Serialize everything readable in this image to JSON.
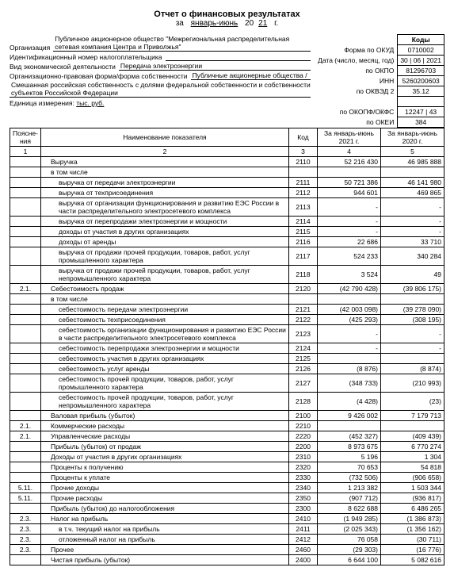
{
  "header": {
    "title": "Отчет о финансовых результатах",
    "period_prefix": "за",
    "period_month": "январь-июнь",
    "period_year_prefix": "20",
    "period_year_suffix": "21",
    "period_suffix": "г.",
    "org_label": "Организация",
    "org_value": "Публичное акционерное общество \"Межрегиональная распределительная сетевая компания Центра и Приволжья\"",
    "inn_label": "Идентификационный номер налогоплательщика",
    "activity_label": "Вид экономической деятельности",
    "activity_value": "Передача электроэнергии",
    "legal_label": "Организационно-правовая форма/форма собственности",
    "legal_value": "Публичные акционерные общества /",
    "ownership_note": "Смешанная российская собственность с долями федеральной собственности и собственности субъектов Российской Федерации",
    "unit_label": "Единица измерения:",
    "unit_value": "тыс. руб."
  },
  "codes": {
    "hdr": "Коды",
    "okud_lbl": "Форма по ОКУД",
    "okud": "0710002",
    "date_lbl": "Дата (число, месяц, год)",
    "date": "30 | 06 | 2021",
    "okpo_lbl": "по ОКПО",
    "okpo": "81296703",
    "inn_lbl": "ИНН",
    "inn": "5260200603",
    "okved_lbl": "по ОКВЭД 2",
    "okved": "35.12",
    "okopf_lbl": "по ОКОПФ/ОКФС",
    "okopf": "12247 | 43",
    "okei_lbl": "по ОКЕИ",
    "okei": "384"
  },
  "table": {
    "head": {
      "c1": "Поясне-\nния",
      "c2": "Наименование показателя",
      "c3": "Код",
      "c4": "За январь-июнь 2021 г.",
      "c5": "За январь-июнь 2020 г.",
      "n1": "1",
      "n2": "2",
      "n3": "3",
      "n4": "4",
      "n5": "5"
    },
    "rows": [
      {
        "p": "",
        "n": "Выручка",
        "i": 1,
        "c": "2110",
        "v1": "52 216 430",
        "v2": "46 985 888"
      },
      {
        "p": "",
        "n": "в том числе",
        "i": 1,
        "c": "",
        "v1": "",
        "v2": ""
      },
      {
        "p": "",
        "n": "выручка от передачи электроэнергии",
        "i": 2,
        "c": "2111",
        "v1": "50 721 386",
        "v2": "46 141 980"
      },
      {
        "p": "",
        "n": "выручка от техприсоединения",
        "i": 2,
        "c": "2112",
        "v1": "944 601",
        "v2": "469 865"
      },
      {
        "p": "",
        "n": "выручка от организации функционирования и развитию ЕЭС России в части распределительного электросетевого комплекса",
        "i": 2,
        "c": "2113",
        "v1": "-",
        "v2": "-"
      },
      {
        "p": "",
        "n": "выручка от перепродажи электроэнергии и мощности",
        "i": 2,
        "c": "2114",
        "v1": "-",
        "v2": "-"
      },
      {
        "p": "",
        "n": "доходы от участия в других организациях",
        "i": 2,
        "c": "2115",
        "v1": "-",
        "v2": "-"
      },
      {
        "p": "",
        "n": "доходы от аренды",
        "i": 2,
        "c": "2116",
        "v1": "22 686",
        "v2": "33 710"
      },
      {
        "p": "",
        "n": "выручка от продажи прочей продукции, товаров, работ, услуг промышленного характера",
        "i": 2,
        "c": "2117",
        "v1": "524 233",
        "v2": "340 284"
      },
      {
        "p": "",
        "n": "выручка от продажи прочей продукции, товаров, работ, услуг непромышленного характера",
        "i": 2,
        "c": "2118",
        "v1": "3 524",
        "v2": "49"
      },
      {
        "p": "2.1.",
        "n": "Себестоимость продаж",
        "i": 1,
        "c": "2120",
        "v1": "(42 790 428)",
        "v2": "(39 806 175)"
      },
      {
        "p": "",
        "n": "в том числе",
        "i": 1,
        "c": "",
        "v1": "",
        "v2": ""
      },
      {
        "p": "",
        "n": "себестоимость передачи электроэнергии",
        "i": 2,
        "c": "2121",
        "v1": "(42 003 098)",
        "v2": "(39 278 090)"
      },
      {
        "p": "",
        "n": "себестоимость техприсоединения",
        "i": 2,
        "c": "2122",
        "v1": "(425 293)",
        "v2": "(308 195)"
      },
      {
        "p": "",
        "n": "себестоимость организации функционирования и развитию ЕЭС России в части распределительного электросетевого комплекса",
        "i": 2,
        "c": "2123",
        "v1": "-",
        "v2": "-"
      },
      {
        "p": "",
        "n": "себестоимость перепродажи электроэнергии и мощности",
        "i": 2,
        "c": "2124",
        "v1": "-",
        "v2": "-"
      },
      {
        "p": "",
        "n": "себестоимость участия в других организациях",
        "i": 2,
        "c": "2125",
        "v1": "",
        "v2": ""
      },
      {
        "p": "",
        "n": "себестоимость услуг аренды",
        "i": 2,
        "c": "2126",
        "v1": "(8 876)",
        "v2": "(8 874)"
      },
      {
        "p": "",
        "n": "себестоимость прочей продукции, товаров, работ, услуг промышленного характера",
        "i": 2,
        "c": "2127",
        "v1": "(348 733)",
        "v2": "(210 993)"
      },
      {
        "p": "",
        "n": "себестоимость прочей продукции, товаров, работ, услуг непромышленного характера",
        "i": 2,
        "c": "2128",
        "v1": "(4 428)",
        "v2": "(23)"
      },
      {
        "p": "",
        "n": "Валовая прибыль (убыток)",
        "i": 1,
        "c": "2100",
        "v1": "9 426 002",
        "v2": "7 179 713"
      },
      {
        "p": "2.1.",
        "n": "Коммерческие расходы",
        "i": 1,
        "c": "2210",
        "v1": "",
        "v2": ""
      },
      {
        "p": "2.1.",
        "n": "Управленческие расходы",
        "i": 1,
        "c": "2220",
        "v1": "(452 327)",
        "v2": "(409 439)"
      },
      {
        "p": "",
        "n": "Прибыль (убыток) от продаж",
        "i": 1,
        "c": "2200",
        "v1": "8 973 675",
        "v2": "6 770 274"
      },
      {
        "p": "",
        "n": "Доходы от участия в других организациях",
        "i": 1,
        "c": "2310",
        "v1": "5 196",
        "v2": "1 304"
      },
      {
        "p": "",
        "n": "Проценты к получению",
        "i": 1,
        "c": "2320",
        "v1": "70 653",
        "v2": "54 818"
      },
      {
        "p": "",
        "n": "Проценты к уплате",
        "i": 1,
        "c": "2330",
        "v1": "(732 506)",
        "v2": "(906 658)"
      },
      {
        "p": "5.11.",
        "n": "Прочие доходы",
        "i": 1,
        "c": "2340",
        "v1": "1 213 382",
        "v2": "1 503 344"
      },
      {
        "p": "5.11.",
        "n": "Прочие расходы",
        "i": 1,
        "c": "2350",
        "v1": "(907 712)",
        "v2": "(936 817)"
      },
      {
        "p": "",
        "n": "Прибыль (убыток) до налогообложения",
        "i": 1,
        "c": "2300",
        "v1": "8 622 688",
        "v2": "6 486 265"
      },
      {
        "p": "2.3.",
        "n": "Налог на прибыль",
        "i": 1,
        "c": "2410",
        "v1": "(1 949 285)",
        "v2": "(1 386 873)"
      },
      {
        "p": "2.3.",
        "n": "в т.ч. текущий налог на прибыль",
        "i": 2,
        "c": "2411",
        "v1": "(2 025 343)",
        "v2": "(1 356 162)"
      },
      {
        "p": "2.3.",
        "n": "отложенный налог на прибыль",
        "i": 2,
        "c": "2412",
        "v1": "76 058",
        "v2": "(30 711)"
      },
      {
        "p": "2.3.",
        "n": "Прочее",
        "i": 1,
        "c": "2460",
        "v1": "(29 303)",
        "v2": "(16 776)"
      },
      {
        "p": "",
        "n": "Чистая прибыль (убыток)",
        "i": 1,
        "c": "2400",
        "v1": "6 644 100",
        "v2": "5 082 616"
      }
    ]
  }
}
